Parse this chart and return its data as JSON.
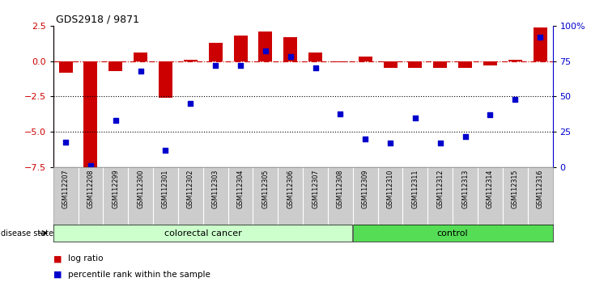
{
  "title": "GDS2918 / 9871",
  "samples": [
    "GSM112207",
    "GSM112208",
    "GSM112299",
    "GSM112300",
    "GSM112301",
    "GSM112302",
    "GSM112303",
    "GSM112304",
    "GSM112305",
    "GSM112306",
    "GSM112307",
    "GSM112308",
    "GSM112309",
    "GSM112310",
    "GSM112311",
    "GSM112312",
    "GSM112313",
    "GSM112314",
    "GSM112315",
    "GSM112316"
  ],
  "log_ratio": [
    -0.8,
    -7.6,
    -0.7,
    0.6,
    -2.6,
    0.1,
    1.3,
    1.8,
    2.1,
    1.7,
    0.6,
    -0.1,
    0.3,
    -0.5,
    -0.5,
    -0.5,
    -0.5,
    -0.3,
    0.1,
    2.4
  ],
  "percentile": [
    18,
    1,
    33,
    68,
    12,
    45,
    72,
    72,
    82,
    78,
    70,
    38,
    20,
    17,
    35,
    17,
    22,
    37,
    48,
    92
  ],
  "colorectal_cancer_count": 12,
  "ylim_left": [
    -7.5,
    2.5
  ],
  "yticks_left": [
    -7.5,
    -5.0,
    -2.5,
    0.0,
    2.5
  ],
  "yticks_right": [
    0,
    25,
    50,
    75,
    100
  ],
  "bar_color": "#cc0000",
  "dot_color": "#0000cc",
  "zero_line_color": "#cc0000",
  "group1_label": "colorectal cancer",
  "group2_label": "control",
  "group1_color": "#ccffcc",
  "group2_color": "#55dd55",
  "legend_bar": "log ratio",
  "legend_dot": "percentile rank within the sample",
  "axis_color_left": "#cc0000",
  "axis_color_right": "#0000cc",
  "background_color": "#ffffff",
  "sample_box_color": "#cccccc",
  "sample_box_border": "#ffffff"
}
